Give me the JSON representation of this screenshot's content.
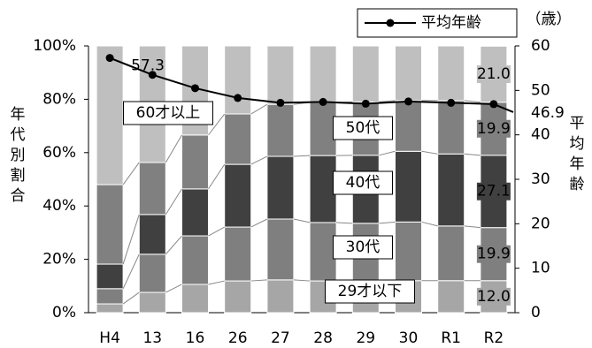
{
  "chart_data": {
    "type": "bar",
    "stacked": true,
    "y_axis_label": "年代別割合",
    "y2_axis_label": "平均年齢",
    "y2_unit": "（歳）",
    "categories": [
      "H4",
      "13",
      "16",
      "26",
      "27",
      "28",
      "29",
      "30",
      "R1",
      "R2"
    ],
    "ylim": [
      0,
      100
    ],
    "yticks": [
      {
        "value": 0,
        "label": "0%"
      },
      {
        "value": 20,
        "label": "20%"
      },
      {
        "value": 40,
        "label": "40%"
      },
      {
        "value": 60,
        "label": "60%"
      },
      {
        "value": 80,
        "label": "80%"
      },
      {
        "value": 100,
        "label": "100%"
      }
    ],
    "y2lim": [
      0,
      60
    ],
    "y2ticks": [
      0,
      10,
      20,
      30,
      40,
      50,
      60
    ],
    "legend": "top-right",
    "series": [
      {
        "name": "29才以下",
        "type": "bar",
        "color": "#a6a6a6",
        "values": [
          3.3,
          7.6,
          10.6,
          11.9,
          12.3,
          11.9,
          12.0,
          12.0,
          12.0,
          12.0
        ],
        "value_labels": [
          null,
          null,
          null,
          null,
          null,
          null,
          null,
          null,
          null,
          "12.0"
        ]
      },
      {
        "name": "30代",
        "type": "bar",
        "color": "#7f7f7f",
        "values": [
          5.7,
          14.3,
          18.2,
          20.2,
          22.8,
          21.9,
          21.5,
          22.0,
          20.5,
          19.9
        ],
        "value_labels": [
          null,
          null,
          null,
          null,
          null,
          null,
          null,
          null,
          null,
          "19.9"
        ]
      },
      {
        "name": "40代",
        "type": "bar",
        "color": "#404040",
        "values": [
          9.2,
          14.9,
          17.6,
          23.5,
          23.5,
          25.1,
          25.5,
          26.5,
          27.0,
          27.1
        ],
        "value_labels": [
          null,
          null,
          null,
          null,
          null,
          null,
          null,
          null,
          null,
          "27.1"
        ]
      },
      {
        "name": "50代",
        "type": "bar",
        "color": "#808080",
        "values": [
          29.8,
          19.5,
          20.2,
          18.9,
          19.5,
          19.9,
          20.0,
          19.0,
          20.0,
          19.9
        ],
        "value_labels": [
          null,
          null,
          null,
          null,
          null,
          null,
          null,
          null,
          null,
          "19.9"
        ]
      },
      {
        "name": "60才以上",
        "type": "bar",
        "color": "#bfbfbf",
        "values": [
          52.0,
          43.7,
          33.4,
          25.5,
          21.9,
          21.2,
          21.0,
          20.5,
          20.5,
          21.0
        ],
        "value_labels": [
          null,
          null,
          null,
          null,
          null,
          null,
          null,
          null,
          null,
          "21.0"
        ]
      },
      {
        "name": "平均年齢",
        "type": "line",
        "axis": "y2",
        "color": "#000000",
        "values": [
          57.3,
          53.5,
          50.5,
          48.3,
          47.2,
          47.4,
          47.0,
          47.5,
          47.2,
          46.9
        ],
        "value_labels": [
          "57.3",
          null,
          null,
          null,
          null,
          null,
          null,
          null,
          null,
          "46.9"
        ]
      }
    ]
  }
}
